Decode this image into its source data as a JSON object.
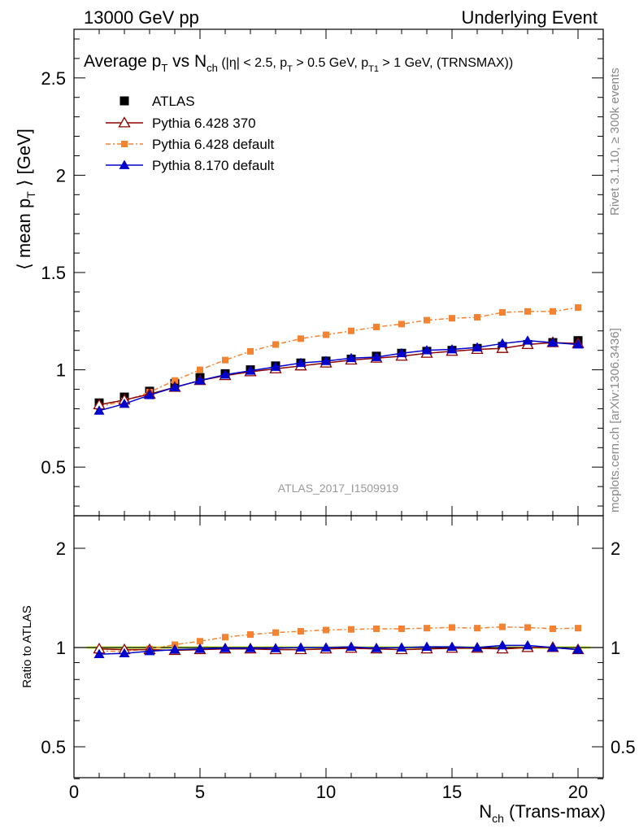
{
  "header": {
    "left": "13000 GeV pp",
    "right": "Underlying Event"
  },
  "side_labels": {
    "rivet": "Rivet 3.1.10, ≥ 300k events",
    "mcplots": "mcplots.cern.ch [arXiv:1306.3436]"
  },
  "analysis_id": "ATLAS_2017_I1509919",
  "title": {
    "main": "Average p",
    "main_sub": "T",
    "vs": " vs N",
    "vs_sub": "ch",
    "cuts_open": " (|η| < 2.5, p",
    "cuts_sub1": "T",
    "cuts_mid": " > 0.5 GeV, p",
    "cuts_sub2": "T1",
    "cuts_close": " > 1 GeV, (TRNSMAX))"
  },
  "y_label": {
    "pre": "⟨ mean p",
    "sub": "T",
    "post": " ⟩ [GeV]"
  },
  "ratio_label": "Ratio to ATLAS",
  "x_label": {
    "pre": "N",
    "sub": "ch",
    "post": " (Trans-max)"
  },
  "colors": {
    "atlas": "#000000",
    "py6_370": "#8b0000",
    "py6_default": "#f58231",
    "py8": "#0000cc",
    "band": "#ccff33"
  },
  "chart_data": {
    "type": "scatter",
    "x": [
      1,
      2,
      3,
      4,
      5,
      6,
      7,
      8,
      9,
      10,
      11,
      12,
      13,
      14,
      15,
      16,
      17,
      18,
      19,
      20
    ],
    "xlim": [
      0,
      21
    ],
    "ylim": [
      0.25,
      2.75
    ],
    "ratio_ylim": [
      0.33,
      2.25
    ],
    "x_ticks": [
      0,
      5,
      10,
      15,
      20
    ],
    "y_ticks": [
      0.5,
      1,
      1.5,
      2,
      2.5
    ],
    "ratio_ticks": [
      0.5,
      1,
      2
    ],
    "series": [
      {
        "name": "ATLAS",
        "marker": "square",
        "values": [
          0.83,
          0.86,
          0.89,
          0.93,
          0.96,
          0.98,
          1.0,
          1.02,
          1.035,
          1.045,
          1.055,
          1.07,
          1.085,
          1.095,
          1.1,
          1.11,
          1.12,
          1.13,
          1.14,
          1.15
        ]
      },
      {
        "name": "Pythia 6.428 370",
        "marker": "triangle-open",
        "values": [
          0.82,
          0.845,
          0.875,
          0.91,
          0.945,
          0.97,
          0.99,
          1.005,
          1.02,
          1.035,
          1.05,
          1.06,
          1.07,
          1.085,
          1.095,
          1.105,
          1.11,
          1.13,
          1.14,
          1.135
        ],
        "ratio": [
          0.99,
          0.985,
          0.985,
          0.98,
          0.985,
          0.99,
          0.99,
          0.985,
          0.985,
          0.99,
          0.995,
          0.99,
          0.985,
          0.99,
          0.995,
          0.995,
          0.99,
          1.0,
          1.0,
          0.985
        ]
      },
      {
        "name": "Pythia 6.428 default",
        "marker": "square-small",
        "values": [
          0.81,
          0.84,
          0.885,
          0.945,
          1.0,
          1.05,
          1.095,
          1.13,
          1.16,
          1.18,
          1.2,
          1.22,
          1.235,
          1.255,
          1.265,
          1.27,
          1.295,
          1.3,
          1.3,
          1.32
        ],
        "ratio": [
          0.975,
          0.975,
          0.99,
          1.02,
          1.045,
          1.075,
          1.095,
          1.11,
          1.12,
          1.13,
          1.135,
          1.14,
          1.14,
          1.145,
          1.15,
          1.145,
          1.155,
          1.15,
          1.14,
          1.145
        ]
      },
      {
        "name": "Pythia 8.170 default",
        "marker": "triangle",
        "values": [
          0.79,
          0.825,
          0.87,
          0.91,
          0.945,
          0.975,
          0.995,
          1.015,
          1.035,
          1.045,
          1.06,
          1.065,
          1.085,
          1.1,
          1.105,
          1.115,
          1.135,
          1.15,
          1.14,
          1.13
        ],
        "ratio": [
          0.955,
          0.96,
          0.975,
          0.985,
          0.99,
          0.995,
          0.995,
          0.995,
          1.0,
          1.0,
          1.005,
          0.995,
          1.0,
          1.005,
          1.005,
          1.0,
          1.015,
          1.015,
          1.0,
          0.985
        ]
      }
    ]
  }
}
